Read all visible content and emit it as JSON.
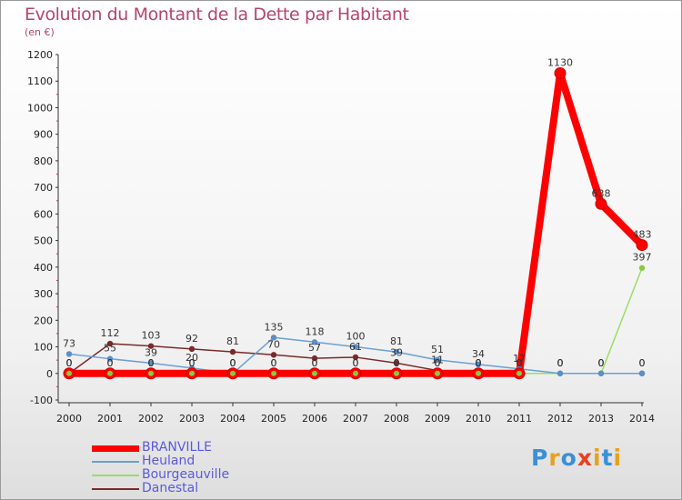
{
  "header": {
    "title": "Evolution du Montant de la Dette par Habitant",
    "subtitle": "(en €)"
  },
  "logo": {
    "text": "Proxiti"
  },
  "chart_data": {
    "type": "line",
    "title": "Evolution du Montant de la Dette par Habitant",
    "subtitle": "(en €)",
    "xlabel": "",
    "ylabel": "",
    "x": [
      2000,
      2001,
      2002,
      2003,
      2004,
      2005,
      2006,
      2007,
      2008,
      2009,
      2010,
      2011,
      2012,
      2013,
      2014
    ],
    "ylim": [
      -100,
      1200
    ],
    "ytick_step": 100,
    "grid": false,
    "legend_position": "bottom-left",
    "series": [
      {
        "name": "BRANVILLE",
        "color": "#ff0000",
        "marker_fill": "#ff0000",
        "values": [
          0,
          0,
          0,
          0,
          0,
          0,
          0,
          0,
          0,
          0,
          0,
          0,
          1130,
          638,
          483
        ],
        "labels": [
          "0",
          "0",
          "0",
          "0",
          "0",
          "0",
          "0",
          "0",
          "0",
          "0",
          "0",
          "0",
          "1130",
          "638",
          "483"
        ]
      },
      {
        "name": "Heuland",
        "color": "#6b9fd4",
        "marker_fill": "#5b8fc8",
        "values": [
          73,
          55,
          39,
          20,
          0,
          135,
          118,
          100,
          81,
          51,
          34,
          17,
          0,
          0,
          0
        ],
        "labels": [
          "73",
          "55",
          "39",
          "20",
          "0",
          "135",
          "118",
          "100",
          "81",
          "51",
          "34",
          "17",
          "0",
          "0",
          "0"
        ]
      },
      {
        "name": "Bourgeauville",
        "color": "#99dd66",
        "marker_fill": "#88cc44",
        "values": [
          0,
          0,
          0,
          0,
          0,
          0,
          0,
          0,
          0,
          0,
          0,
          0,
          0,
          0,
          397
        ],
        "labels": [
          "0",
          "0",
          "0",
          "0",
          "0",
          "0",
          "0",
          "0",
          "0",
          "0",
          "0",
          "0",
          "0",
          "0",
          "397"
        ]
      },
      {
        "name": "Danestal",
        "color": "#7a2a2a",
        "marker_fill": "#7a2a2a",
        "values": [
          0,
          112,
          103,
          92,
          81,
          70,
          57,
          61,
          39,
          11,
          0,
          0,
          0,
          0,
          0
        ],
        "labels": [
          "0",
          "112",
          "103",
          "92",
          "81",
          "70",
          "57",
          "61",
          "39",
          "11",
          "0",
          "0",
          "0",
          "0",
          "0"
        ]
      }
    ]
  }
}
